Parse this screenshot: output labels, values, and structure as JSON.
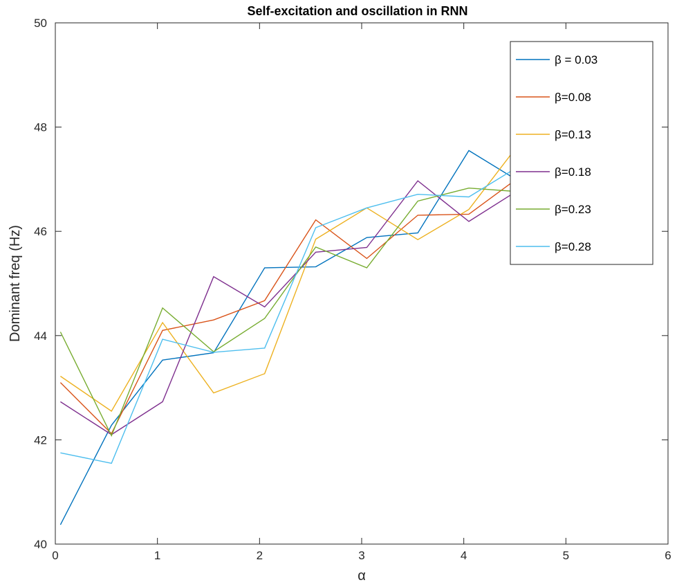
{
  "chart_data": {
    "type": "line",
    "title": "Self-excitation and oscillation in RNN",
    "xlabel": "α",
    "ylabel": "Dominant freq (Hz)",
    "xlim": [
      0,
      6
    ],
    "ylim": [
      40,
      50
    ],
    "xticks": [
      0,
      1,
      2,
      3,
      4,
      5,
      6
    ],
    "yticks": [
      40,
      42,
      44,
      46,
      48,
      50
    ],
    "grid": false,
    "legend_position": "top-right",
    "x": [
      0.05,
      0.55,
      1.05,
      1.55,
      2.05,
      2.55,
      3.05,
      3.55,
      4.05,
      4.55
    ],
    "series": [
      {
        "name": "β = 0.03",
        "color": "#0072BD",
        "values": [
          40.37,
          42.28,
          43.53,
          43.67,
          45.3,
          45.32,
          45.88,
          45.97,
          47.55,
          46.95
        ]
      },
      {
        "name": "β=0.08",
        "color": "#D95319",
        "values": [
          43.1,
          42.12,
          44.1,
          44.3,
          44.67,
          46.22,
          45.48,
          46.31,
          46.33,
          47.05
        ]
      },
      {
        "name": "β=0.13",
        "color": "#EDB120",
        "values": [
          43.22,
          42.55,
          44.25,
          42.9,
          43.27,
          45.85,
          46.45,
          45.84,
          46.42,
          47.7
        ]
      },
      {
        "name": "β=0.18",
        "color": "#7E2F8E",
        "values": [
          42.73,
          42.1,
          42.73,
          45.13,
          44.55,
          45.6,
          45.69,
          46.97,
          46.19,
          46.81
        ]
      },
      {
        "name": "β=0.23",
        "color": "#77AC30",
        "values": [
          44.07,
          42.08,
          44.53,
          43.69,
          44.33,
          45.7,
          45.3,
          46.58,
          46.83,
          46.76
        ]
      },
      {
        "name": "β=0.28",
        "color": "#4DBEEE",
        "values": [
          41.75,
          41.55,
          43.93,
          43.68,
          43.76,
          46.07,
          46.45,
          46.71,
          46.66,
          47.26
        ]
      }
    ]
  }
}
